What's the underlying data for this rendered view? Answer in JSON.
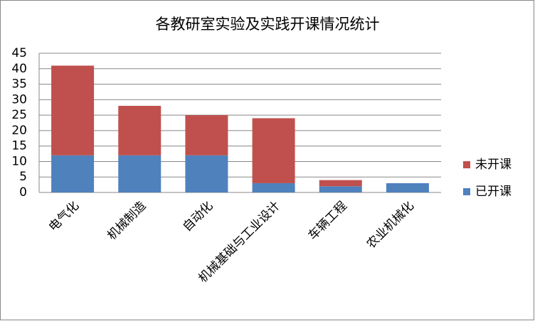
{
  "chart_data": {
    "type": "stacked_bar",
    "title": "各教研室实验及实践开课情况统计",
    "categories": [
      "电气化",
      "机械制造",
      "自动化",
      "机械基础与工业设计",
      "车辆工程",
      "农业机械化"
    ],
    "series": [
      {
        "name": "已开课",
        "color": "#4f81bd",
        "values": [
          12,
          12,
          12,
          3,
          2,
          3
        ]
      },
      {
        "name": "未开课",
        "color": "#c0504d",
        "values": [
          29,
          16,
          13,
          21,
          2,
          0
        ]
      }
    ],
    "ylim": [
      0,
      45
    ],
    "yticks": [
      0,
      5,
      10,
      15,
      20,
      25,
      30,
      35,
      40,
      45
    ],
    "grid": true,
    "legend": "right"
  }
}
